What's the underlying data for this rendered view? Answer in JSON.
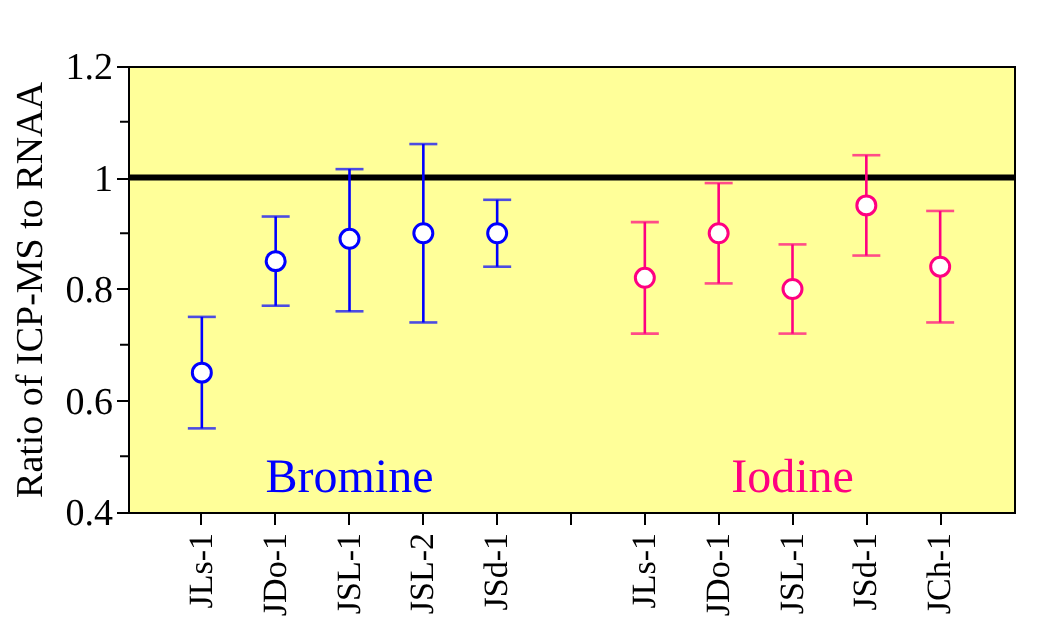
{
  "chart_data": {
    "type": "scatter",
    "ylabel": "Ratio of ICP-MS to RNAA",
    "categories": [
      "JLs-1",
      "JDo-1",
      "JSL-1",
      "JSL-2",
      "JSd-1",
      null,
      "JLs-1",
      "JDo-1",
      "JSL-1",
      "JSd-1",
      "JCh-1"
    ],
    "series": [
      {
        "name": "Bromine",
        "color": "#0000ff",
        "values": [
          0.65,
          0.85,
          0.89,
          0.9,
          0.9,
          null,
          null,
          null,
          null,
          null,
          null
        ],
        "errors": [
          [
            0.55,
            0.75
          ],
          [
            0.77,
            0.93
          ],
          [
            0.76,
            1.015
          ],
          [
            0.74,
            1.06
          ],
          [
            0.84,
            0.96
          ],
          null,
          null,
          null,
          null,
          null,
          null
        ]
      },
      {
        "name": "Iodine",
        "color": "#ff0080",
        "values": [
          null,
          null,
          null,
          null,
          null,
          null,
          0.82,
          0.9,
          0.8,
          0.95,
          0.84
        ],
        "errors": [
          null,
          null,
          null,
          null,
          null,
          null,
          [
            0.72,
            0.92
          ],
          [
            0.81,
            0.99
          ],
          [
            0.72,
            0.88
          ],
          [
            0.86,
            1.04
          ],
          [
            0.74,
            0.94
          ]
        ]
      }
    ],
    "ylim": [
      0.4,
      1.2
    ],
    "yticks": [
      0.4,
      {
        "value": 0.5,
        "label": null
      },
      0.6,
      {
        "value": 0.7,
        "label": null
      },
      0.8,
      {
        "value": 0.9,
        "label": null
      },
      1,
      {
        "value": 1.1,
        "label": null
      },
      1.2
    ],
    "ref_lines": [
      {
        "axis": "y",
        "value": 1,
        "color": "#000000"
      }
    ],
    "marker": "circle",
    "legend": false
  }
}
